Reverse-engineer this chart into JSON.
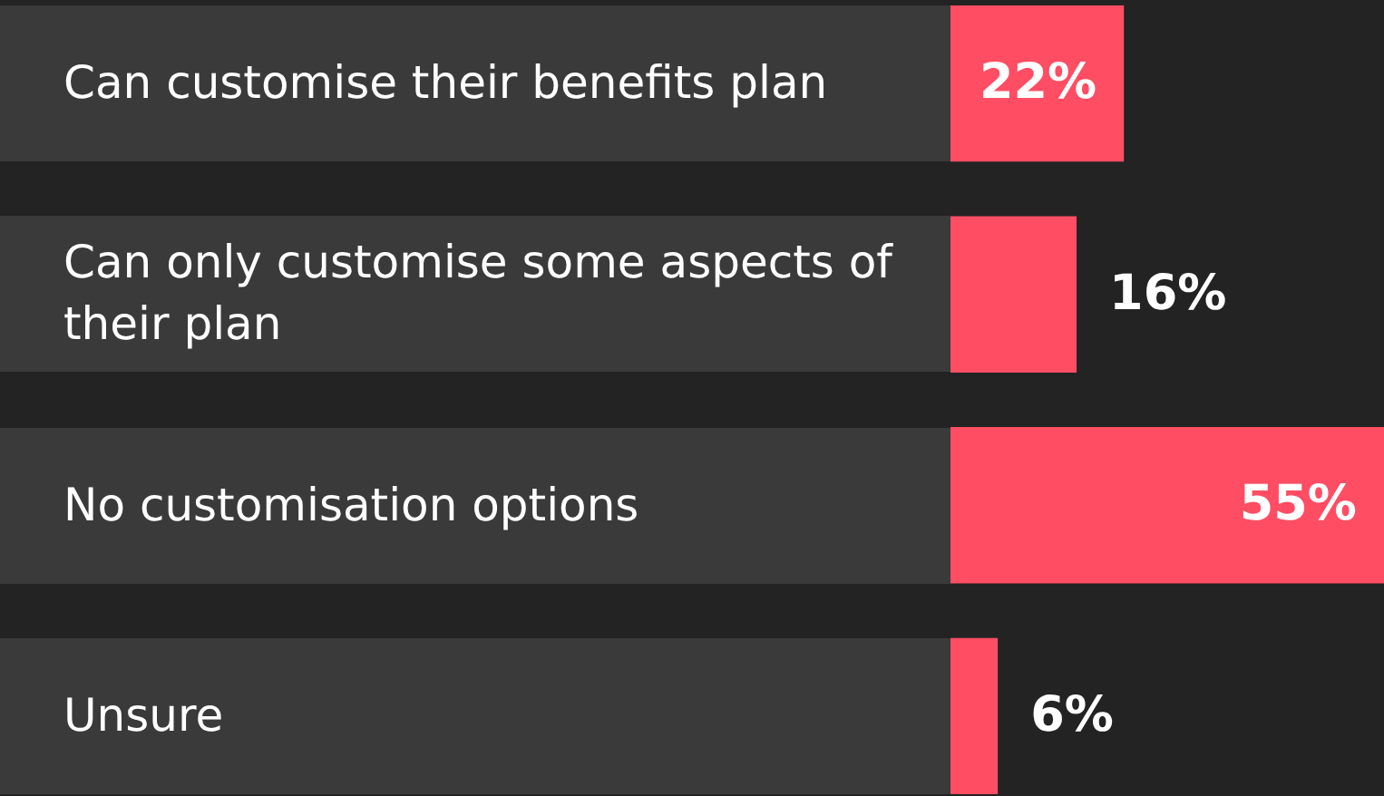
{
  "chart_data": {
    "type": "bar",
    "orientation": "horizontal",
    "categories": [
      "Can customise their benefits plan",
      "Can only customise some aspects of their plan",
      "No customisation options",
      "Unsure"
    ],
    "values": [
      22,
      16,
      55,
      6
    ],
    "value_labels": [
      "22%",
      "16%",
      "55%",
      "6%"
    ],
    "color": "#ff4d63"
  }
}
